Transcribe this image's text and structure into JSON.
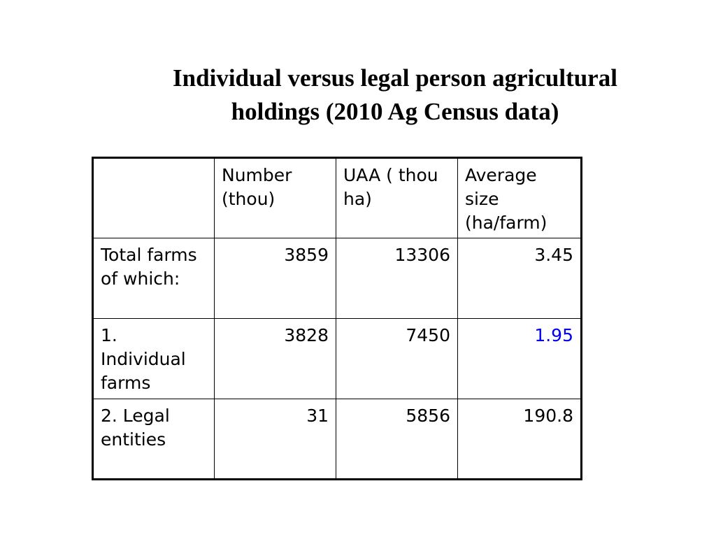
{
  "title": {
    "line1": "Individual versus legal person agricultural",
    "line2": "holdings (2010 Ag Census data)"
  },
  "table": {
    "header": {
      "corner": "",
      "number": "Number (thou)",
      "uaa": "UAA ( thou ha)",
      "average": "Average size (ha/farm)"
    },
    "rows": [
      {
        "label": "Total farms of which:",
        "number": "3859",
        "uaa": "13306",
        "average": "3.45"
      },
      {
        "label": "1. Individual farms",
        "number": "3828",
        "uaa": "7450",
        "average": "1.95"
      },
      {
        "label": "2. Legal entities",
        "number": "31",
        "uaa": "5856",
        "average": "190.8"
      }
    ]
  },
  "colors": {
    "highlight": "#0000ee",
    "text": "#000000",
    "background": "#ffffff"
  }
}
